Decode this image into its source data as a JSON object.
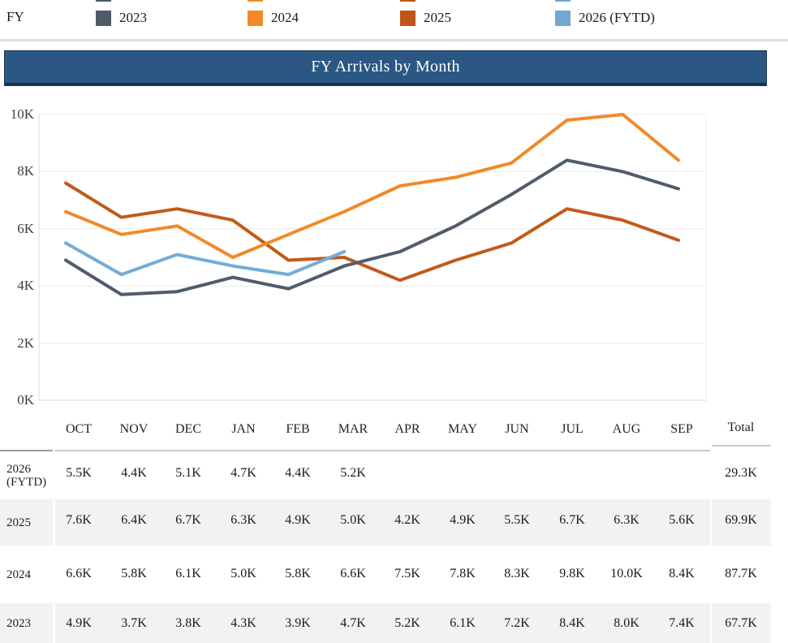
{
  "legend": {
    "field_label": "FY",
    "items": [
      {
        "label": "2023",
        "color": "#4F5A68"
      },
      {
        "label": "2024",
        "color": "#F28A26"
      },
      {
        "label": "2025",
        "color": "#C05517"
      },
      {
        "label": "2026 (FYTD)",
        "color": "#70A8D1"
      }
    ]
  },
  "title_bar": {
    "title": "FY Arrivals by Month",
    "background": "#2A5783",
    "border_color": "#16344E"
  },
  "chart_data": {
    "type": "line",
    "title": "FY Arrivals by Month",
    "unit": "thousands of arrivals",
    "categories": [
      "OCT",
      "NOV",
      "DEC",
      "JAN",
      "FEB",
      "MAR",
      "APR",
      "MAY",
      "JUN",
      "JUL",
      "AUG",
      "SEP"
    ],
    "series": [
      {
        "name": "2023",
        "color": "#515C6B",
        "values_k": [
          4.9,
          3.7,
          3.8,
          4.3,
          3.9,
          4.7,
          5.2,
          6.1,
          7.2,
          8.4,
          8.0,
          7.4
        ]
      },
      {
        "name": "2024",
        "color": "#F18A28",
        "values_k": [
          6.6,
          5.8,
          6.1,
          5.0,
          5.8,
          6.6,
          7.5,
          7.8,
          8.3,
          9.8,
          10.0,
          8.4
        ]
      },
      {
        "name": "2025",
        "color": "#C25A1A",
        "values_k": [
          7.6,
          6.4,
          6.7,
          6.3,
          4.9,
          5.0,
          4.2,
          4.9,
          5.5,
          6.7,
          6.3,
          5.6
        ]
      },
      {
        "name": "2026 (FYTD)",
        "color": "#74ACD6",
        "values_k": [
          5.5,
          4.4,
          5.1,
          4.7,
          4.4,
          5.2
        ]
      }
    ],
    "ylim_k": [
      0,
      10
    ],
    "y_ticks_k": [
      0,
      2,
      4,
      6,
      8,
      10
    ],
    "y_tick_labels": [
      "0K",
      "2K",
      "4K",
      "6K",
      "8K",
      "10K"
    ],
    "grid": true,
    "legend_position": "top"
  },
  "table": {
    "columns": [
      "OCT",
      "NOV",
      "DEC",
      "JAN",
      "FEB",
      "MAR",
      "APR",
      "MAY",
      "JUN",
      "JUL",
      "AUG",
      "SEP"
    ],
    "total_header": "Total",
    "stripe_color": "#F2F2F2",
    "rows": [
      {
        "label": "2026 (FYTD)",
        "cells": [
          "5.5K",
          "4.4K",
          "5.1K",
          "4.7K",
          "4.4K",
          "5.2K",
          "",
          "",
          "",
          "",
          "",
          ""
        ],
        "total": "29.3K"
      },
      {
        "label": "2025",
        "cells": [
          "7.6K",
          "6.4K",
          "6.7K",
          "6.3K",
          "4.9K",
          "5.0K",
          "4.2K",
          "4.9K",
          "5.5K",
          "6.7K",
          "6.3K",
          "5.6K"
        ],
        "total": "69.9K"
      },
      {
        "label": "2024",
        "cells": [
          "6.6K",
          "5.8K",
          "6.1K",
          "5.0K",
          "5.8K",
          "6.6K",
          "7.5K",
          "7.8K",
          "8.3K",
          "9.8K",
          "10.0K",
          "8.4K"
        ],
        "total": "87.7K"
      },
      {
        "label": "2023",
        "cells": [
          "4.9K",
          "3.7K",
          "3.8K",
          "4.3K",
          "3.9K",
          "4.7K",
          "5.2K",
          "6.1K",
          "7.2K",
          "8.4K",
          "8.0K",
          "7.4K"
        ],
        "total": "67.7K"
      }
    ]
  }
}
